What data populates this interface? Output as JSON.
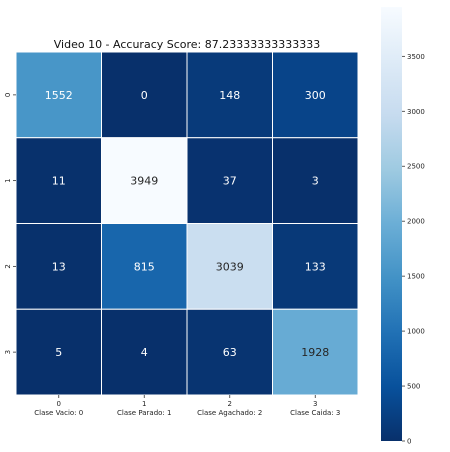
{
  "chart_data": {
    "type": "heatmap",
    "title": "Video 10 - Accuracy Score: 87.23333333333333",
    "x_tick_numbers": [
      "0",
      "1",
      "2",
      "3"
    ],
    "x_tick_labels": [
      "Clase Vacio: 0",
      "Clase Parado: 1",
      "Clase Agachado: 2",
      "Clase Caida: 3"
    ],
    "y_tick_labels": [
      "0",
      "1",
      "2",
      "3"
    ],
    "matrix": [
      [
        1552,
        0,
        148,
        300
      ],
      [
        11,
        3949,
        37,
        3
      ],
      [
        13,
        815,
        3039,
        133
      ],
      [
        5,
        4,
        63,
        1928
      ]
    ],
    "vmin": 0,
    "vmax": 3949,
    "colormap": "Blues_r",
    "colorbar_ticks": [
      0,
      500,
      1000,
      1500,
      2000,
      2500,
      3000,
      3500
    ],
    "grid": false,
    "cell_separator_color": "#ffffff"
  }
}
